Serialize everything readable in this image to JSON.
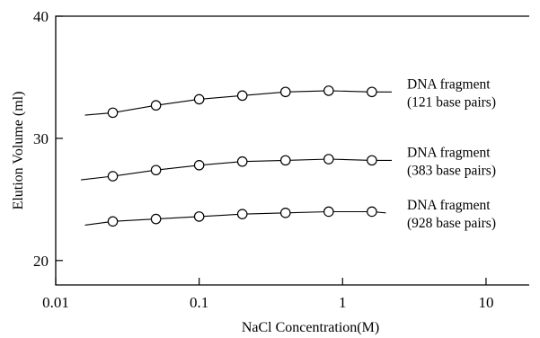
{
  "chart_data": {
    "type": "line",
    "title": "",
    "xlabel": "NaCl Concentration(M)",
    "ylabel": "Elution Volume (ml)",
    "xscale": "log",
    "xlim": [
      0.01,
      20
    ],
    "ylim": [
      18,
      40
    ],
    "xticks": [
      0.01,
      0.1,
      1,
      10
    ],
    "xtick_labels": [
      "0.01",
      "0.1",
      "1",
      "10"
    ],
    "yticks": [
      20,
      30,
      40
    ],
    "ytick_labels": [
      "20",
      "30",
      "40"
    ],
    "grid": false,
    "legend": "none",
    "series": [
      {
        "annotation": [
          "DNA fragment",
          "(121 base pairs)"
        ],
        "x": [
          0.025,
          0.05,
          0.1,
          0.2,
          0.4,
          0.8,
          1.6
        ],
        "y": [
          32.1,
          32.7,
          33.2,
          33.5,
          33.8,
          33.9,
          33.8
        ],
        "line_start": [
          0.016,
          31.9
        ],
        "line_end": [
          2.2,
          33.8
        ]
      },
      {
        "annotation": [
          "DNA fragment",
          "(383 base pairs)"
        ],
        "x": [
          0.025,
          0.05,
          0.1,
          0.2,
          0.4,
          0.8,
          1.6
        ],
        "y": [
          26.9,
          27.4,
          27.8,
          28.1,
          28.2,
          28.3,
          28.2
        ],
        "line_start": [
          0.015,
          26.6
        ],
        "line_end": [
          2.2,
          28.2
        ]
      },
      {
        "annotation": [
          "DNA fragment",
          "(928 base pairs)"
        ],
        "x": [
          0.025,
          0.05,
          0.1,
          0.2,
          0.4,
          0.8,
          1.6
        ],
        "y": [
          23.2,
          23.4,
          23.6,
          23.8,
          23.9,
          24.0,
          24.0
        ],
        "line_start": [
          0.016,
          22.9
        ],
        "line_end": [
          2.0,
          23.9
        ]
      }
    ]
  }
}
